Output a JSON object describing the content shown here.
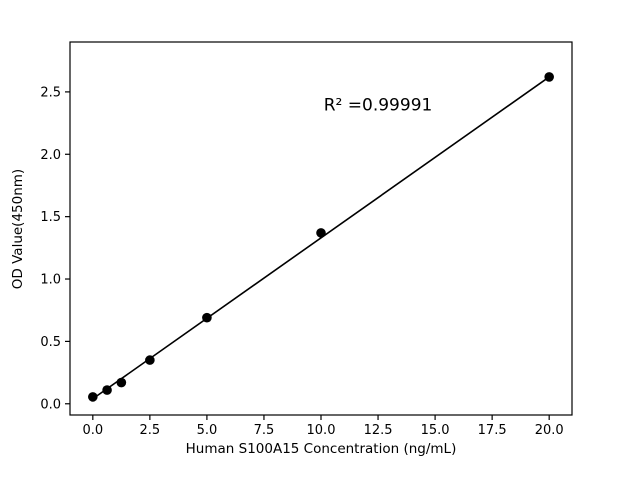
{
  "chart_data": {
    "type": "scatter",
    "title": "",
    "xlabel": "Human S100A15 Concentration (ng/mL)",
    "ylabel": "OD Value(450nm)",
    "annotation": {
      "text": "R² =0.99991",
      "x": 12.5,
      "y": 2.35
    },
    "points": {
      "x": [
        0,
        0.625,
        1.25,
        2.5,
        5,
        10,
        20
      ],
      "y": [
        0.055,
        0.11,
        0.17,
        0.35,
        0.69,
        1.37,
        2.62
      ]
    },
    "fit_line": {
      "x": [
        0,
        20
      ],
      "y": [
        0.04,
        2.62
      ]
    },
    "xlim": [
      -1,
      21
    ],
    "ylim": [
      -0.09,
      2.9
    ],
    "xticks": [
      0.0,
      2.5,
      5.0,
      7.5,
      10.0,
      12.5,
      15.0,
      17.5,
      20.0
    ],
    "xtick_labels": [
      "0.0",
      "2.5",
      "5.0",
      "7.5",
      "10.0",
      "12.5",
      "15.0",
      "17.5",
      "20.0"
    ],
    "yticks": [
      0.0,
      0.5,
      1.0,
      1.5,
      2.0,
      2.5
    ],
    "ytick_labels": [
      "0.0",
      "0.5",
      "1.0",
      "1.5",
      "2.0",
      "2.5"
    ],
    "grid": false,
    "legend": "none",
    "colors": {
      "marker": "#000000",
      "line": "#000000",
      "spine": "#000000",
      "background": "#ffffff"
    }
  }
}
